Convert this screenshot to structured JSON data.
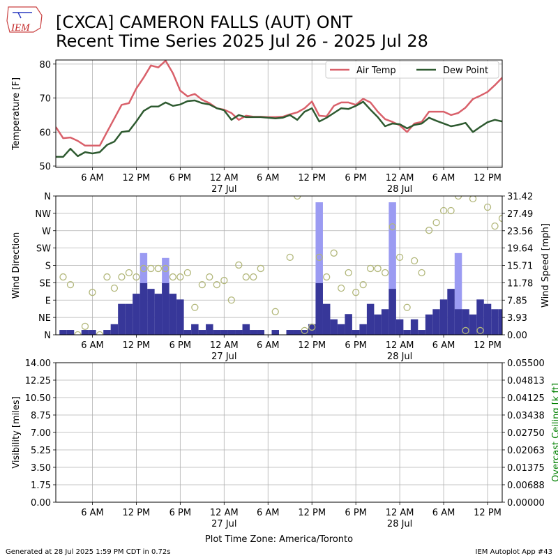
{
  "header": {
    "title": "[CXCA] CAMERON FALLS (AUT)  ONT",
    "subtitle": "Recent Time Series 2025 Jul 26 - 2025 Jul 28",
    "logo": "IEM"
  },
  "footer": {
    "timezone": "Plot Time Zone: America/Toronto",
    "generated": "Generated at 28 Jul 2025 1:59 PM CDT in 0.72s",
    "app": "IEM Autoplot App #43"
  },
  "chart_data": [
    {
      "type": "line",
      "ylabel": "Temperature [F]",
      "grid": true,
      "legend": "upper right",
      "xlim": [
        "2025-07-26T01:00",
        "2025-07-28T14:00"
      ],
      "xticks": [
        {
          "value": "2025-07-26T06:00",
          "label": "6 AM"
        },
        {
          "value": "2025-07-26T12:00",
          "label": "12 PM"
        },
        {
          "value": "2025-07-26T18:00",
          "label": "6 PM"
        },
        {
          "value": "2025-07-27T00:00",
          "label": "12 AM",
          "date": "27 Jul"
        },
        {
          "value": "2025-07-27T06:00",
          "label": "6 AM"
        },
        {
          "value": "2025-07-27T12:00",
          "label": "12 PM"
        },
        {
          "value": "2025-07-27T18:00",
          "label": "6 PM"
        },
        {
          "value": "2025-07-28T00:00",
          "label": "12 AM",
          "date": "28 Jul"
        },
        {
          "value": "2025-07-28T06:00",
          "label": "6 AM"
        },
        {
          "value": "2025-07-28T12:00",
          "label": "12 PM"
        }
      ],
      "ylim": [
        49.6,
        81.2
      ],
      "yticks": [
        50,
        60,
        70,
        80
      ],
      "x": [
        "2025-07-26T01:00",
        "2025-07-26T02:00",
        "2025-07-26T03:00",
        "2025-07-26T04:00",
        "2025-07-26T05:00",
        "2025-07-26T06:00",
        "2025-07-26T07:00",
        "2025-07-26T08:00",
        "2025-07-26T09:00",
        "2025-07-26T10:00",
        "2025-07-26T11:00",
        "2025-07-26T12:00",
        "2025-07-26T13:00",
        "2025-07-26T14:00",
        "2025-07-26T15:00",
        "2025-07-26T16:00",
        "2025-07-26T17:00",
        "2025-07-26T18:00",
        "2025-07-26T19:00",
        "2025-07-26T20:00",
        "2025-07-26T21:00",
        "2025-07-26T22:00",
        "2025-07-26T23:00",
        "2025-07-27T00:00",
        "2025-07-27T01:00",
        "2025-07-27T02:00",
        "2025-07-27T03:00",
        "2025-07-27T04:00",
        "2025-07-27T05:00",
        "2025-07-27T06:00",
        "2025-07-27T07:00",
        "2025-07-27T08:00",
        "2025-07-27T09:00",
        "2025-07-27T10:00",
        "2025-07-27T11:00",
        "2025-07-27T12:00",
        "2025-07-27T13:00",
        "2025-07-27T14:00",
        "2025-07-27T15:00",
        "2025-07-27T16:00",
        "2025-07-27T17:00",
        "2025-07-27T18:00",
        "2025-07-27T19:00",
        "2025-07-27T20:00",
        "2025-07-27T21:00",
        "2025-07-27T22:00",
        "2025-07-27T23:00",
        "2025-07-28T00:00",
        "2025-07-28T01:00",
        "2025-07-28T02:00",
        "2025-07-28T03:00",
        "2025-07-28T04:00",
        "2025-07-28T05:00",
        "2025-07-28T06:00",
        "2025-07-28T07:00",
        "2025-07-28T08:00",
        "2025-07-28T09:00",
        "2025-07-28T10:00",
        "2025-07-28T11:00",
        "2025-07-28T12:00",
        "2025-07-28T13:00",
        "2025-07-28T14:00"
      ],
      "series": [
        {
          "name": "Air Temp",
          "color": "#d9606a",
          "values": [
            61.5,
            58.2,
            58.4,
            57.4,
            56,
            56,
            56,
            60,
            64,
            68,
            68.5,
            72.8,
            76,
            79.6,
            79,
            81,
            77.3,
            72.2,
            70.5,
            71.2,
            69.5,
            68.5,
            67,
            66.6,
            65.6,
            63.6,
            64.8,
            64.5,
            64.5,
            64.4,
            64.4,
            64.5,
            65.2,
            65.8,
            67,
            69,
            64.8,
            64.6,
            67.7,
            68.7,
            68.7,
            68,
            69.8,
            68.7,
            66,
            63.8,
            63,
            62,
            60,
            62.5,
            63,
            66,
            66,
            66,
            65,
            65.6,
            67.2,
            69.7,
            70.7,
            71.8,
            73.8,
            76
          ]
        },
        {
          "name": "Dew Point",
          "color": "#2e5a30",
          "values": [
            52.7,
            52.7,
            55.1,
            52.9,
            54.1,
            53.7,
            54.1,
            56.2,
            57.2,
            60,
            60.3,
            63.1,
            66.2,
            67.5,
            67.5,
            68.7,
            67.7,
            68.1,
            69.1,
            69.3,
            68.5,
            68.1,
            67,
            66.4,
            63.6,
            65,
            64.4,
            64.4,
            64.4,
            64.2,
            64,
            64.2,
            65,
            63.6,
            66,
            67,
            63.1,
            64.2,
            65.6,
            67,
            66.8,
            67.7,
            68.9,
            66.6,
            64.4,
            61.7,
            62.5,
            62.3,
            61.1,
            62.1,
            62.5,
            64.2,
            63.3,
            62.5,
            61.7,
            62.1,
            62.7,
            60,
            61.5,
            62.9,
            63.6,
            63.1
          ]
        }
      ]
    },
    {
      "type": "bar",
      "ylabel": "Wind Direction",
      "y2label": "Wind Speed [mph]",
      "grid": true,
      "xlim": [
        "2025-07-26T01:00",
        "2025-07-28T14:00"
      ],
      "xticks": [
        {
          "value": "2025-07-26T06:00",
          "label": "6 AM"
        },
        {
          "value": "2025-07-26T12:00",
          "label": "12 PM"
        },
        {
          "value": "2025-07-26T18:00",
          "label": "6 PM"
        },
        {
          "value": "2025-07-27T00:00",
          "label": "12 AM",
          "date": "27 Jul"
        },
        {
          "value": "2025-07-27T06:00",
          "label": "6 AM"
        },
        {
          "value": "2025-07-27T12:00",
          "label": "12 PM"
        },
        {
          "value": "2025-07-27T18:00",
          "label": "6 PM"
        },
        {
          "value": "2025-07-28T00:00",
          "label": "12 AM",
          "date": "28 Jul"
        },
        {
          "value": "2025-07-28T06:00",
          "label": "6 AM"
        },
        {
          "value": "2025-07-28T12:00",
          "label": "12 PM"
        }
      ],
      "ylim": [
        0,
        360
      ],
      "yticks": [
        {
          "value": 0,
          "label": "N"
        },
        {
          "value": 45,
          "label": "NE"
        },
        {
          "value": 90,
          "label": "E"
        },
        {
          "value": 135,
          "label": "SE"
        },
        {
          "value": 180,
          "label": "S"
        },
        {
          "value": 225,
          "label": "SW"
        },
        {
          "value": 270,
          "label": "W"
        },
        {
          "value": 315,
          "label": "NW"
        },
        {
          "value": 360,
          "label": "N"
        }
      ],
      "y2lim": [
        0,
        31.42
      ],
      "y2ticks": [
        {
          "value": 0,
          "label": "0.00"
        },
        3.93,
        7.85,
        11.78,
        15.71,
        19.64,
        23.56,
        27.49,
        31.42
      ],
      "x": [
        "2025-07-26T01:00",
        "2025-07-26T02:00",
        "2025-07-26T03:00",
        "2025-07-26T04:00",
        "2025-07-26T05:00",
        "2025-07-26T06:00",
        "2025-07-26T07:00",
        "2025-07-26T08:00",
        "2025-07-26T09:00",
        "2025-07-26T10:00",
        "2025-07-26T11:00",
        "2025-07-26T12:00",
        "2025-07-26T13:00",
        "2025-07-26T14:00",
        "2025-07-26T15:00",
        "2025-07-26T16:00",
        "2025-07-26T17:00",
        "2025-07-26T18:00",
        "2025-07-26T19:00",
        "2025-07-26T20:00",
        "2025-07-26T21:00",
        "2025-07-26T22:00",
        "2025-07-26T23:00",
        "2025-07-27T00:00",
        "2025-07-27T01:00",
        "2025-07-27T02:00",
        "2025-07-27T03:00",
        "2025-07-27T04:00",
        "2025-07-27T05:00",
        "2025-07-27T06:00",
        "2025-07-27T07:00",
        "2025-07-27T08:00",
        "2025-07-27T09:00",
        "2025-07-27T10:00",
        "2025-07-27T11:00",
        "2025-07-27T12:00",
        "2025-07-27T13:00",
        "2025-07-27T14:00",
        "2025-07-27T15:00",
        "2025-07-27T16:00",
        "2025-07-27T17:00",
        "2025-07-27T18:00",
        "2025-07-27T19:00",
        "2025-07-27T20:00",
        "2025-07-27T21:00",
        "2025-07-27T22:00",
        "2025-07-27T23:00",
        "2025-07-28T00:00",
        "2025-07-28T01:00",
        "2025-07-28T02:00",
        "2025-07-28T03:00",
        "2025-07-28T04:00",
        "2025-07-28T05:00",
        "2025-07-28T06:00",
        "2025-07-28T07:00",
        "2025-07-28T08:00",
        "2025-07-28T09:00",
        "2025-07-28T10:00",
        "2025-07-28T11:00",
        "2025-07-28T12:00",
        "2025-07-28T13:00",
        "2025-07-28T14:00"
      ],
      "series": [
        {
          "type": "bar",
          "axis": "y2",
          "color": "#9b9bf2",
          "values": [
            null,
            null,
            null,
            null,
            null,
            null,
            null,
            null,
            null,
            null,
            null,
            null,
            18.5,
            null,
            null,
            17.4,
            null,
            null,
            null,
            null,
            null,
            null,
            null,
            null,
            null,
            null,
            null,
            null,
            null,
            null,
            null,
            null,
            null,
            null,
            null,
            null,
            30,
            null,
            null,
            null,
            null,
            null,
            null,
            null,
            null,
            null,
            30,
            null,
            null,
            null,
            null,
            null,
            null,
            null,
            null,
            18.5,
            null,
            null,
            null,
            null,
            null,
            null
          ]
        },
        {
          "type": "bar",
          "axis": "y2",
          "color": "#373799",
          "values": [
            0,
            1.1,
            1.1,
            0,
            1.1,
            1.1,
            0,
            1.1,
            2.4,
            7,
            7,
            9.3,
            11.7,
            10.4,
            9.3,
            11.7,
            9.3,
            8,
            1.1,
            2.4,
            1.1,
            2.4,
            1.1,
            1.1,
            1.1,
            1.1,
            2.4,
            1.1,
            1.1,
            0,
            1.1,
            0,
            1.1,
            1.1,
            1.1,
            2.4,
            11.7,
            7,
            3.5,
            2.4,
            4.7,
            1.1,
            2.4,
            7,
            4.6,
            5.8,
            10.4,
            3.5,
            1.1,
            3.5,
            1.1,
            4.6,
            5.8,
            8,
            10.4,
            5.8,
            5.8,
            4.6,
            8,
            7,
            5.8,
            5.8
          ]
        },
        {
          "type": "scatter",
          "color": "#b2b77a",
          "values": [
            null,
            150,
            130,
            0,
            22,
            110,
            0,
            150,
            121,
            150,
            161,
            150,
            172,
            172,
            172,
            172,
            150,
            150,
            161,
            71,
            130,
            150,
            130,
            141,
            90,
            181,
            150,
            150,
            172,
            null,
            60,
            null,
            201,
            360,
            11,
            20,
            201,
            150,
            212,
            121,
            161,
            110,
            130,
            172,
            172,
            161,
            280,
            201,
            71,
            192,
            161,
            271,
            291,
            322,
            322,
            360,
            11,
            353,
            11,
            331,
            282,
            302
          ]
        }
      ]
    },
    {
      "type": "line",
      "ylabel": "Visibility [miles]",
      "y2label": "Overcast Ceiling [k ft]",
      "y2color": "#008000",
      "grid": true,
      "xlim": [
        "2025-07-26T01:00",
        "2025-07-28T14:00"
      ],
      "xticks": [
        {
          "value": "2025-07-26T06:00",
          "label": "6 AM"
        },
        {
          "value": "2025-07-26T12:00",
          "label": "12 PM"
        },
        {
          "value": "2025-07-26T18:00",
          "label": "6 PM"
        },
        {
          "value": "2025-07-27T00:00",
          "label": "12 AM",
          "date": "27 Jul"
        },
        {
          "value": "2025-07-27T06:00",
          "label": "6 AM"
        },
        {
          "value": "2025-07-27T12:00",
          "label": "12 PM"
        },
        {
          "value": "2025-07-27T18:00",
          "label": "6 PM"
        },
        {
          "value": "2025-07-28T00:00",
          "label": "12 AM",
          "date": "28 Jul"
        },
        {
          "value": "2025-07-28T06:00",
          "label": "6 AM"
        },
        {
          "value": "2025-07-28T12:00",
          "label": "12 PM"
        }
      ],
      "ylim": [
        0,
        14
      ],
      "yticks": [
        {
          "value": 0,
          "label": "0.00"
        },
        1.75,
        {
          "value": 3.5,
          "label": "3.50"
        },
        5.25,
        {
          "value": 7,
          "label": "7.00"
        },
        8.75,
        {
          "value": 10.5,
          "label": "10.50"
        },
        12.25,
        {
          "value": 14,
          "label": "14.00"
        }
      ],
      "y2lim": [
        0,
        0.055
      ],
      "y2ticks": [
        {
          "value": 0,
          "label": "0.00000"
        },
        {
          "value": 0.00688,
          "label": "0.00688"
        },
        {
          "value": 0.01375,
          "label": "0.01375"
        },
        {
          "value": 0.02063,
          "label": "0.02063"
        },
        {
          "value": 0.0275,
          "label": "0.02750"
        },
        {
          "value": 0.03438,
          "label": "0.03438"
        },
        {
          "value": 0.04125,
          "label": "0.04125"
        },
        {
          "value": 0.04813,
          "label": "0.04813"
        },
        {
          "value": 0.055,
          "label": "0.05500"
        }
      ]
    }
  ]
}
